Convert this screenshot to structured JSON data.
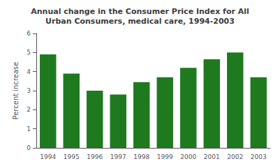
{
  "chart_data": {
    "type": "bar",
    "title": "Annual change in the Consumer Price Index for All\nUrban Consumers, medical care, 1994-2003",
    "y_label": "Percent increase",
    "categories": [
      "1994",
      "1995",
      "1996",
      "1997",
      "1998",
      "1999",
      "2000",
      "2001",
      "2002",
      "2003"
    ],
    "values": [
      4.9,
      3.9,
      3.0,
      2.8,
      3.45,
      3.7,
      4.2,
      4.65,
      5.0,
      3.7
    ],
    "color": "#1f7a1f",
    "ylim": [
      0,
      6
    ],
    "yticks": [
      0,
      1,
      2,
      3,
      4,
      5,
      6
    ],
    "grid": false
  }
}
